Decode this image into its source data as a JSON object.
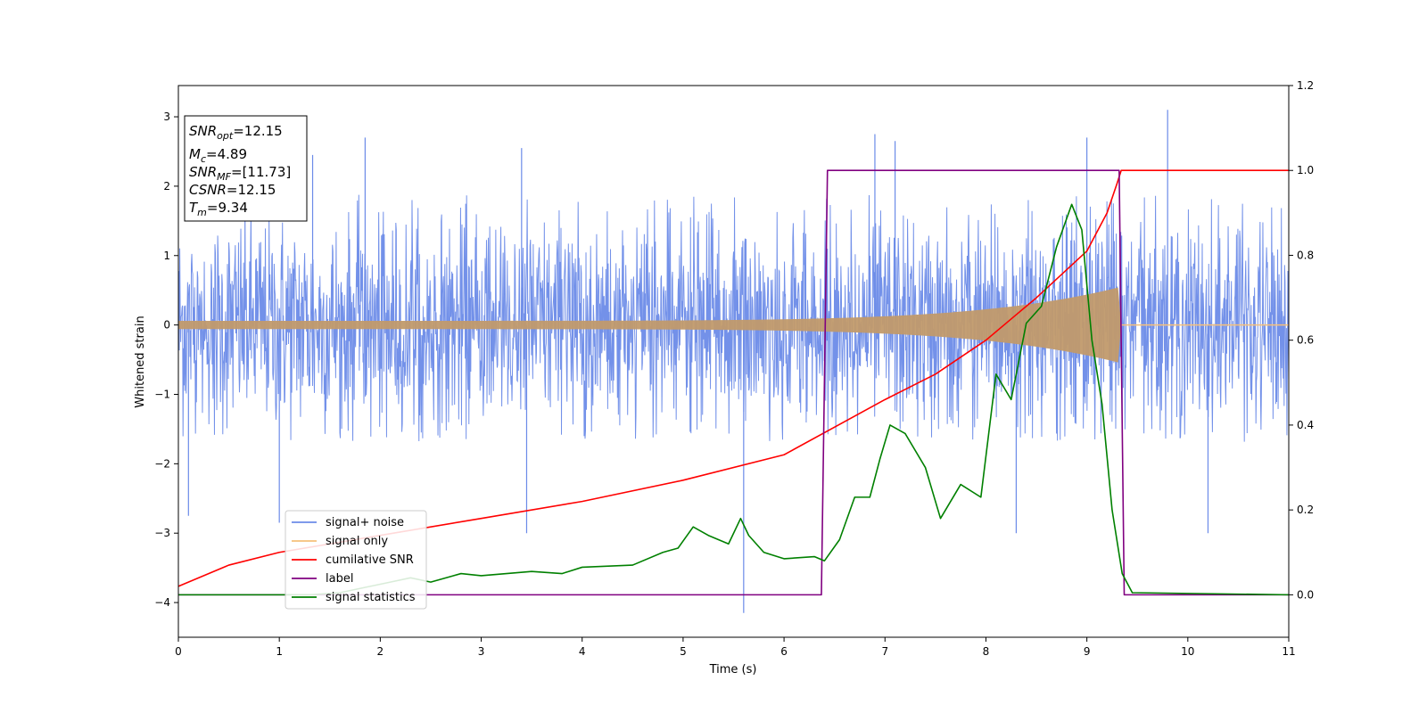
{
  "chart_data": {
    "type": "line",
    "xlabel": "Time (s)",
    "ylabel": "Whitened strain",
    "xlim": [
      0,
      11
    ],
    "ylim": [
      -4.5,
      3.45
    ],
    "y2lim": [
      -0.1,
      1.2
    ],
    "x_ticks": [
      "0",
      "1",
      "2",
      "3",
      "4",
      "5",
      "6",
      "7",
      "8",
      "9",
      "10",
      "11"
    ],
    "y_ticks": [
      "3",
      "2",
      "1",
      "0",
      "−1",
      "−2",
      "−3",
      "−4"
    ],
    "y2_ticks": [
      "1.2",
      "1.0",
      "0.8",
      "0.6",
      "0.4",
      "0.2",
      "0.0"
    ],
    "info_box": {
      "line1_main": "SNR",
      "line1_sub": "opt",
      "line1_value": "=12.15",
      "line2_main": "M",
      "line2_sub": "c",
      "line2_value": "=4.89",
      "line3_main": "SNR",
      "line3_sub": "MF",
      "line3_value": "=[11.73]",
      "line4_main": "CSNR",
      "line4_value": "=12.15",
      "line5_main": "T",
      "line5_sub": "m",
      "line5_value": "=9.34"
    },
    "legend": {
      "placement": "lower-left",
      "entries": [
        "signal+ noise",
        "signal only",
        "cumilative SNR",
        "label",
        "signal statistics"
      ]
    },
    "series": [
      {
        "name": "signal+ noise",
        "color": "#6b8be8",
        "axis": "left",
        "noise_band": {
          "lower": -1.7,
          "upper": 1.9
        },
        "notable_peaks": [
          [
            1.33,
            2.45
          ],
          [
            1.85,
            2.7
          ],
          [
            3.4,
            2.55
          ],
          [
            6.9,
            2.75
          ],
          [
            7.1,
            2.65
          ],
          [
            9.0,
            2.7
          ],
          [
            9.8,
            3.1
          ],
          [
            5.6,
            -4.15
          ],
          [
            0.1,
            -2.75
          ],
          [
            1.0,
            -2.85
          ],
          [
            3.45,
            -3.0
          ],
          [
            8.3,
            -3.0
          ],
          [
            10.2,
            -3.0
          ]
        ]
      },
      {
        "name": "signal only",
        "color": "#f5c07a",
        "axis": "left",
        "envelope": {
          "t_merge": 9.34,
          "a0": 0.06,
          "a_end": 0.55
        }
      },
      {
        "name": "cumilative SNR",
        "color": "#ff0000",
        "axis": "right",
        "points": [
          [
            0,
            0.02
          ],
          [
            0.5,
            0.07
          ],
          [
            1,
            0.1
          ],
          [
            2,
            0.14
          ],
          [
            3,
            0.18
          ],
          [
            4,
            0.22
          ],
          [
            5,
            0.27
          ],
          [
            6,
            0.33
          ],
          [
            7,
            0.46
          ],
          [
            7.5,
            0.52
          ],
          [
            8,
            0.6
          ],
          [
            8.5,
            0.7
          ],
          [
            9,
            0.81
          ],
          [
            9.2,
            0.9
          ],
          [
            9.3,
            0.97
          ],
          [
            9.34,
            1.0
          ],
          [
            11,
            1.0
          ]
        ]
      },
      {
        "name": "label",
        "color": "#800080",
        "axis": "right",
        "points": [
          [
            0,
            0
          ],
          [
            6.37,
            0
          ],
          [
            6.43,
            1
          ],
          [
            9.32,
            1
          ],
          [
            9.37,
            0
          ],
          [
            11,
            0
          ]
        ]
      },
      {
        "name": "signal statistics",
        "color": "#008000",
        "axis": "right",
        "points": [
          [
            0,
            0
          ],
          [
            1.3,
            0
          ],
          [
            1.6,
            0.005
          ],
          [
            1.9,
            0.02
          ],
          [
            2.1,
            0.03
          ],
          [
            2.3,
            0.04
          ],
          [
            2.5,
            0.03
          ],
          [
            2.8,
            0.05
          ],
          [
            3.0,
            0.045
          ],
          [
            3.5,
            0.055
          ],
          [
            3.8,
            0.05
          ],
          [
            4.0,
            0.065
          ],
          [
            4.5,
            0.07
          ],
          [
            4.8,
            0.1
          ],
          [
            4.95,
            0.11
          ],
          [
            5.1,
            0.16
          ],
          [
            5.25,
            0.14
          ],
          [
            5.45,
            0.12
          ],
          [
            5.57,
            0.18
          ],
          [
            5.65,
            0.14
          ],
          [
            5.8,
            0.1
          ],
          [
            6.0,
            0.085
          ],
          [
            6.3,
            0.09
          ],
          [
            6.4,
            0.08
          ],
          [
            6.55,
            0.13
          ],
          [
            6.7,
            0.23
          ],
          [
            6.85,
            0.23
          ],
          [
            6.95,
            0.32
          ],
          [
            7.05,
            0.4
          ],
          [
            7.2,
            0.38
          ],
          [
            7.4,
            0.3
          ],
          [
            7.55,
            0.18
          ],
          [
            7.75,
            0.26
          ],
          [
            7.95,
            0.23
          ],
          [
            8.1,
            0.52
          ],
          [
            8.25,
            0.46
          ],
          [
            8.4,
            0.64
          ],
          [
            8.55,
            0.68
          ],
          [
            8.7,
            0.82
          ],
          [
            8.85,
            0.92
          ],
          [
            8.95,
            0.86
          ],
          [
            9.05,
            0.6
          ],
          [
            9.15,
            0.45
          ],
          [
            9.25,
            0.2
          ],
          [
            9.35,
            0.05
          ],
          [
            9.45,
            0.005
          ],
          [
            11,
            0
          ]
        ]
      }
    ]
  }
}
